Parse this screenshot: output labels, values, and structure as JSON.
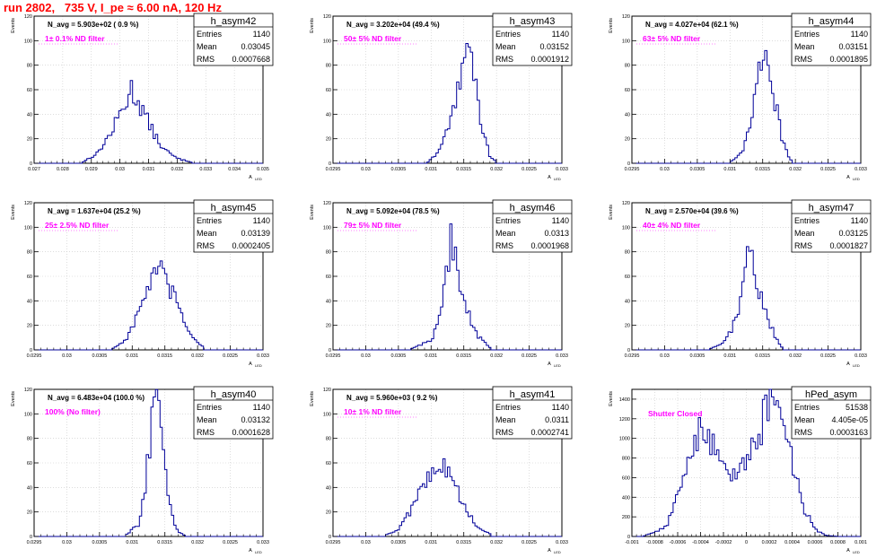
{
  "header": {
    "title": "run 2802,   735 V, I_pe ≈ 6.00 nA, 120 Hz"
  },
  "colors": {
    "title": "#ff0000",
    "annotation": "#ff00ff",
    "histogram": "#000099",
    "grid": "#c8c8c8"
  },
  "chart_data": [
    {
      "type": "histogram",
      "name": "h_asym42",
      "annotation": "N_avg = 5.903e+02 ( 0.9 %)",
      "filter": "1± 0.1% ND filter",
      "stats": {
        "entries": "1140",
        "mean": "0.03045",
        "rms": "0.0007668"
      },
      "xlim": [
        0.027,
        0.035
      ],
      "ylim": [
        0,
        120
      ],
      "xticks": [
        "0.027",
        "0.028",
        "0.029",
        "0.03",
        "0.031",
        "0.032",
        "0.033",
        "0.034",
        "0.035"
      ],
      "yticks": [
        "0",
        "20",
        "40",
        "60",
        "80",
        "100",
        "120"
      ],
      "xlabel": "A",
      "xlabel_sub": "LED",
      "ylabel": "Events",
      "curve": [
        [
          0.0287,
          1
        ],
        [
          0.0292,
          8
        ],
        [
          0.0297,
          25
        ],
        [
          0.0301,
          45
        ],
        [
          0.0304,
          60
        ],
        [
          0.0307,
          48
        ],
        [
          0.0311,
          28
        ],
        [
          0.0315,
          12
        ],
        [
          0.032,
          4
        ],
        [
          0.0325,
          1
        ]
      ]
    },
    {
      "type": "histogram",
      "name": "h_asym43",
      "annotation": "N_avg = 3.202e+04 (49.4 %)",
      "filter": "50± 5% ND filter",
      "stats": {
        "entries": "1140",
        "mean": "0.03152",
        "rms": "0.0001912"
      },
      "xlim": [
        0.0295,
        0.033
      ],
      "ylim": [
        0,
        120
      ],
      "xticks": [
        "0.0295",
        "0.03",
        "0.0305",
        "0.031",
        "0.0315",
        "0.032",
        "0.0325",
        "0.033"
      ],
      "yticks": [
        "0",
        "20",
        "40",
        "60",
        "80",
        "100",
        "120"
      ],
      "xlabel": "A",
      "xlabel_sub": "LED",
      "ylabel": "Events",
      "curve": [
        [
          0.03095,
          1
        ],
        [
          0.0311,
          8
        ],
        [
          0.0313,
          35
        ],
        [
          0.0314,
          60
        ],
        [
          0.0315,
          85
        ],
        [
          0.03162,
          88
        ],
        [
          0.0317,
          55
        ],
        [
          0.0318,
          25
        ],
        [
          0.0319,
          6
        ],
        [
          0.032,
          1
        ]
      ]
    },
    {
      "type": "histogram",
      "name": "h_asym44",
      "annotation": "N_avg = 4.027e+04 (62.1 %)",
      "filter": "63± 5% ND filter",
      "stats": {
        "entries": "1140",
        "mean": "0.03151",
        "rms": "0.0001895"
      },
      "xlim": [
        0.0295,
        0.033
      ],
      "ylim": [
        0,
        120
      ],
      "xticks": [
        "0.0295",
        "0.03",
        "0.0305",
        "0.031",
        "0.0315",
        "0.032",
        "0.0325",
        "0.033"
      ],
      "yticks": [
        "0",
        "20",
        "40",
        "60",
        "80",
        "100",
        "120"
      ],
      "xlabel": "A",
      "xlabel_sub": "LED",
      "ylabel": "Events",
      "curve": [
        [
          0.031,
          1
        ],
        [
          0.0312,
          10
        ],
        [
          0.0313,
          32
        ],
        [
          0.0314,
          58
        ],
        [
          0.0315,
          95
        ],
        [
          0.03158,
          85
        ],
        [
          0.0317,
          48
        ],
        [
          0.0318,
          18
        ],
        [
          0.0319,
          5
        ],
        [
          0.03195,
          1
        ]
      ]
    },
    {
      "type": "histogram",
      "name": "h_asym45",
      "annotation": "N_avg = 1.637e+04 (25.2 %)",
      "filter": "25± 2.5% ND filter",
      "stats": {
        "entries": "1140",
        "mean": "0.03139",
        "rms": "0.0002405"
      },
      "xlim": [
        0.0295,
        0.033
      ],
      "ylim": [
        0,
        120
      ],
      "xticks": [
        "0.0295",
        "0.03",
        "0.0305",
        "0.031",
        "0.0315",
        "0.032",
        "0.0325",
        "0.033"
      ],
      "yticks": [
        "0",
        "20",
        "40",
        "60",
        "80",
        "100",
        "120"
      ],
      "xlabel": "A",
      "xlabel_sub": "LED",
      "ylabel": "Events",
      "curve": [
        [
          0.0307,
          1
        ],
        [
          0.0309,
          8
        ],
        [
          0.0311,
          30
        ],
        [
          0.0313,
          60
        ],
        [
          0.0314,
          65
        ],
        [
          0.0315,
          58
        ],
        [
          0.0317,
          35
        ],
        [
          0.0319,
          12
        ],
        [
          0.0321,
          2
        ]
      ]
    },
    {
      "type": "histogram",
      "name": "h_asym46",
      "annotation": "N_avg = 5.092e+04 (78.5 %)",
      "filter": "79± 5% ND filter",
      "stats": {
        "entries": "1140",
        "mean": "0.0313",
        "rms": "0.0001968"
      },
      "xlim": [
        0.0295,
        0.033
      ],
      "ylim": [
        0,
        120
      ],
      "xticks": [
        "0.0295",
        "0.03",
        "0.0305",
        "0.031",
        "0.0315",
        "0.032",
        "0.0325",
        "0.033"
      ],
      "yticks": [
        "0",
        "20",
        "40",
        "60",
        "80",
        "100",
        "120"
      ],
      "xlabel": "A",
      "xlabel_sub": "LED",
      "ylabel": "Events",
      "curve": [
        [
          0.0307,
          1
        ],
        [
          0.031,
          8
        ],
        [
          0.0311,
          20
        ],
        [
          0.0312,
          55
        ],
        [
          0.0313,
          88
        ],
        [
          0.0314,
          70
        ],
        [
          0.0315,
          40
        ],
        [
          0.0317,
          12
        ],
        [
          0.0319,
          2
        ]
      ]
    },
    {
      "type": "histogram",
      "name": "h_asym47",
      "annotation": "N_avg = 2.570e+04 (39.6 %)",
      "filter": "40± 4% ND filter",
      "stats": {
        "entries": "1140",
        "mean": "0.03125",
        "rms": "0.0001827"
      },
      "xlim": [
        0.0295,
        0.033
      ],
      "ylim": [
        0,
        120
      ],
      "xticks": [
        "0.0295",
        "0.03",
        "0.0305",
        "0.031",
        "0.0315",
        "0.032",
        "0.0325",
        "0.033"
      ],
      "yticks": [
        "0",
        "20",
        "40",
        "60",
        "80",
        "100",
        "120"
      ],
      "xlabel": "A",
      "xlabel_sub": "LED",
      "ylabel": "Events",
      "curve": [
        [
          0.0307,
          1
        ],
        [
          0.0309,
          5
        ],
        [
          0.0311,
          25
        ],
        [
          0.0312,
          55
        ],
        [
          0.0313,
          85
        ],
        [
          0.0314,
          60
        ],
        [
          0.0315,
          35
        ],
        [
          0.0317,
          10
        ],
        [
          0.0318,
          2
        ]
      ]
    },
    {
      "type": "histogram",
      "name": "h_asym40",
      "annotation": "N_avg = 6.483e+04 (100.0 %)",
      "filter": "100% (No filter)",
      "stats": {
        "entries": "1140",
        "mean": "0.03132",
        "rms": "0.0001628"
      },
      "xlim": [
        0.0295,
        0.033
      ],
      "ylim": [
        0,
        120
      ],
      "xticks": [
        "0.0295",
        "0.03",
        "0.0305",
        "0.031",
        "0.0315",
        "0.032",
        "0.0325",
        "0.033"
      ],
      "yticks": [
        "0",
        "20",
        "40",
        "60",
        "80",
        "100",
        "120"
      ],
      "xlabel": "A",
      "xlabel_sub": "LED",
      "ylabel": "Events",
      "curve": [
        [
          0.0309,
          1
        ],
        [
          0.0311,
          10
        ],
        [
          0.0312,
          40
        ],
        [
          0.0313,
          95
        ],
        [
          0.0314,
          108
        ],
        [
          0.0315,
          55
        ],
        [
          0.0316,
          18
        ],
        [
          0.0317,
          4
        ],
        [
          0.0318,
          1
        ]
      ]
    },
    {
      "type": "histogram",
      "name": "h_asym41",
      "annotation": "N_avg = 5.960e+03 ( 9.2 %)",
      "filter": "10± 1% ND filter",
      "stats": {
        "entries": "1140",
        "mean": "0.0311",
        "rms": "0.0002741"
      },
      "xlim": [
        0.0295,
        0.033
      ],
      "ylim": [
        0,
        120
      ],
      "xticks": [
        "0.0295",
        "0.03",
        "0.0305",
        "0.031",
        "0.0315",
        "0.032",
        "0.0325",
        "0.033"
      ],
      "yticks": [
        "0",
        "20",
        "40",
        "60",
        "80",
        "100",
        "120"
      ],
      "xlabel": "A",
      "xlabel_sub": "LED",
      "ylabel": "Events",
      "curve": [
        [
          0.0303,
          1
        ],
        [
          0.0305,
          6
        ],
        [
          0.0307,
          22
        ],
        [
          0.0309,
          45
        ],
        [
          0.0311,
          62
        ],
        [
          0.0313,
          48
        ],
        [
          0.0315,
          25
        ],
        [
          0.0317,
          8
        ],
        [
          0.0319,
          2
        ]
      ]
    },
    {
      "type": "histogram",
      "name": "hPed_asym",
      "annotation": "",
      "filter": "Shutter Closed",
      "stats": {
        "entries": "51538",
        "mean": "4.405e-05",
        "rms": "0.0003163"
      },
      "xlim": [
        -0.001,
        0.001
      ],
      "ylim": [
        0,
        1500
      ],
      "xticks": [
        "-0.001",
        "-0.0008",
        "-0.0006",
        "-0.0004",
        "-0.0002",
        "0",
        "0.0002",
        "0.0004",
        "0.0006",
        "0.0008",
        "0.001"
      ],
      "yticks": [
        "0",
        "200",
        "400",
        "600",
        "800",
        "1000",
        "1200",
        "1400"
      ],
      "xlabel": "A",
      "xlabel_sub": "LED",
      "ylabel": "Events",
      "curve": [
        [
          -0.0009,
          2
        ],
        [
          -0.0007,
          100
        ],
        [
          -0.0006,
          400
        ],
        [
          -0.0005,
          850
        ],
        [
          -0.0004,
          1080
        ],
        [
          -0.0003,
          950
        ],
        [
          -0.0002,
          720
        ],
        [
          -0.0001,
          650
        ],
        [
          0.0,
          760
        ],
        [
          0.0001,
          1000
        ],
        [
          0.0002,
          1380
        ],
        [
          0.00025,
          1460
        ],
        [
          0.0003,
          1300
        ],
        [
          0.0004,
          750
        ],
        [
          0.0005,
          300
        ],
        [
          0.0006,
          70
        ],
        [
          0.0007,
          10
        ],
        [
          0.0008,
          1
        ]
      ]
    }
  ]
}
